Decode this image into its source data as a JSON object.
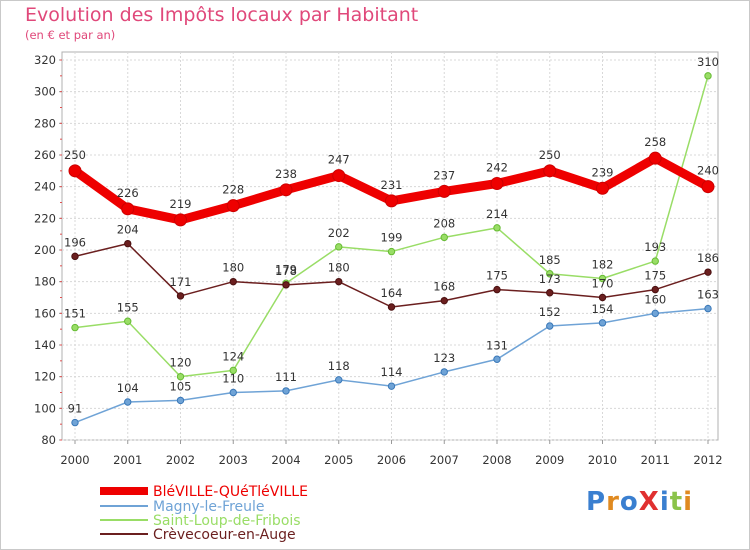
{
  "title": "Evolution des Impôts locaux par Habitant",
  "subtitle": "(en € et par an)",
  "logo": "ProXiti",
  "chart_data": {
    "type": "line",
    "x": [
      "2000",
      "2001",
      "2002",
      "2003",
      "2004",
      "2005",
      "2006",
      "2007",
      "2008",
      "2009",
      "2010",
      "2011",
      "2012"
    ],
    "ylim": [
      80,
      320
    ],
    "yticks": [
      80,
      100,
      120,
      140,
      160,
      180,
      200,
      220,
      240,
      260,
      280,
      300,
      320
    ],
    "grid": true,
    "legend_position": "bottom-left",
    "series": [
      {
        "name": "BléVILLE-QUéTléVILLE",
        "color": "#ee0000",
        "width": 9,
        "values": [
          250,
          226,
          219,
          228,
          238,
          247,
          231,
          237,
          242,
          250,
          239,
          258,
          240
        ]
      },
      {
        "name": "Magny-le-Freule",
        "color": "#6fa3d6",
        "width": 1.5,
        "values": [
          91,
          104,
          105,
          110,
          111,
          118,
          114,
          123,
          131,
          152,
          154,
          160,
          163
        ]
      },
      {
        "name": "Saint-Loup-de-Fribois",
        "color": "#99dd66",
        "width": 1.5,
        "values": [
          151,
          155,
          120,
          124,
          179,
          202,
          199,
          208,
          214,
          185,
          182,
          193,
          310
        ]
      },
      {
        "name": "Crèvecoeur-en-Auge",
        "color": "#6b1f1f",
        "width": 1.5,
        "values": [
          196,
          204,
          171,
          180,
          178,
          180,
          164,
          168,
          175,
          173,
          170,
          175,
          186
        ]
      }
    ]
  }
}
